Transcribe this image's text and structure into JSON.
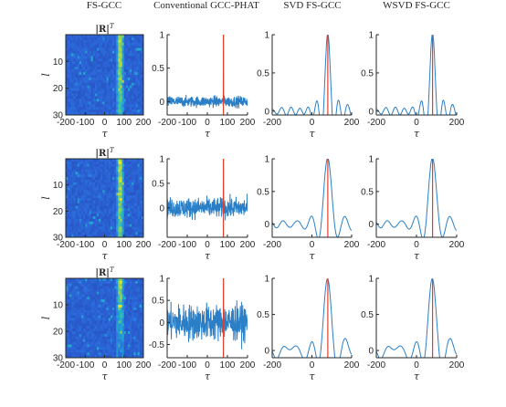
{
  "column_titles": [
    "FS-GCC",
    "Conventional GCC-PHAT",
    "SVD FS-GCC",
    "WSVD FS-GCC"
  ],
  "heatmap_title": "|R|",
  "heatmap_title_sup": "T",
  "tau_label": "τ",
  "l_label": "l",
  "colors": {
    "signal": "#2b7fc7",
    "truth": "#e0402e",
    "heat_low": "#2b3fb2",
    "heat_high": "#f5e928"
  },
  "chart_data": [
    {
      "row": 1,
      "column": "FS-GCC",
      "type": "heatmap",
      "xlim": [
        -200,
        200
      ],
      "ylim": [
        0,
        30
      ],
      "y_reversed": true,
      "xticks": [
        "-200",
        "-100",
        "0",
        "100",
        "200"
      ],
      "yticks": [
        "10",
        "20",
        "30"
      ],
      "xlabel": "τ",
      "ylabel": "l",
      "peak_tau": 80
    },
    {
      "row": 1,
      "column": "Conventional GCC-PHAT",
      "type": "line",
      "xlim": [
        -200,
        200
      ],
      "ylim": [
        -0.2,
        1
      ],
      "xticks": [
        "-200",
        "-100",
        "0",
        "100",
        "200"
      ],
      "yticks": [
        "0",
        "0.5",
        "1"
      ],
      "xlabel": "τ",
      "truth_tau": 80,
      "peak_value": 1,
      "noise_level": 0.08
    },
    {
      "row": 1,
      "column": "SVD FS-GCC",
      "type": "line",
      "xlim": [
        -200,
        200
      ],
      "ylim": [
        -0.05,
        1
      ],
      "xticks": [
        "-200",
        "0",
        "200"
      ],
      "yticks": [
        "0",
        "0.5",
        "1"
      ],
      "xlabel": "τ",
      "truth_tau": 80,
      "peak_value": 1
    },
    {
      "row": 1,
      "column": "WSVD FS-GCC",
      "type": "line",
      "xlim": [
        -200,
        200
      ],
      "ylim": [
        -0.05,
        1
      ],
      "xticks": [
        "-200",
        "0",
        "200"
      ],
      "yticks": [
        "0",
        "0.5",
        "1"
      ],
      "xlabel": "τ",
      "truth_tau": 80,
      "peak_value": 1
    },
    {
      "row": 2,
      "column": "FS-GCC",
      "type": "heatmap",
      "xlim": [
        -200,
        200
      ],
      "ylim": [
        0,
        30
      ],
      "y_reversed": true,
      "xticks": [
        "-200",
        "-100",
        "0",
        "100",
        "200"
      ],
      "yticks": [
        "10",
        "20",
        "30"
      ],
      "xlabel": "τ",
      "ylabel": "l",
      "peak_tau": 80
    },
    {
      "row": 2,
      "column": "Conventional GCC-PHAT",
      "type": "line",
      "xlim": [
        -200,
        200
      ],
      "ylim": [
        -0.6,
        1
      ],
      "xticks": [
        "-200",
        "-100",
        "0",
        "100",
        "200"
      ],
      "yticks": [
        "0",
        "0.5",
        "1"
      ],
      "xlabel": "τ",
      "truth_tau": 80,
      "peak_value": 1,
      "noise_level": 0.2
    },
    {
      "row": 2,
      "column": "SVD FS-GCC",
      "type": "line",
      "xlim": [
        -200,
        200
      ],
      "ylim": [
        -0.2,
        1
      ],
      "xticks": [
        "-200",
        "0",
        "200"
      ],
      "yticks": [
        "0",
        "0.5",
        "1"
      ],
      "xlabel": "τ",
      "truth_tau": 80,
      "peak_value": 1
    },
    {
      "row": 2,
      "column": "WSVD FS-GCC",
      "type": "line",
      "xlim": [
        -200,
        200
      ],
      "ylim": [
        -0.2,
        1
      ],
      "xticks": [
        "-200",
        "0",
        "200"
      ],
      "yticks": [
        "0",
        "0.5",
        "1"
      ],
      "xlabel": "τ",
      "truth_tau": 80,
      "peak_value": 1
    },
    {
      "row": 3,
      "column": "FS-GCC",
      "type": "heatmap",
      "xlim": [
        -200,
        200
      ],
      "ylim": [
        0,
        30
      ],
      "y_reversed": true,
      "xticks": [
        "-200",
        "-100",
        "0",
        "100",
        "200"
      ],
      "yticks": [
        "10",
        "20",
        "30"
      ],
      "xlabel": "τ",
      "ylabel": "l",
      "peak_tau": 80
    },
    {
      "row": 3,
      "column": "Conventional GCC-PHAT",
      "type": "line",
      "xlim": [
        -200,
        200
      ],
      "ylim": [
        -0.8,
        1
      ],
      "xticks": [
        "-200",
        "-100",
        "0",
        "100",
        "200"
      ],
      "yticks": [
        "-0.5",
        "0",
        "0.5",
        "1"
      ],
      "xlabel": "τ",
      "truth_tau": 80,
      "peak_value": 1,
      "noise_level": 0.4
    },
    {
      "row": 3,
      "column": "SVD FS-GCC",
      "type": "line",
      "xlim": [
        -200,
        200
      ],
      "ylim": [
        -0.1,
        1
      ],
      "xticks": [
        "-200",
        "0",
        "200"
      ],
      "yticks": [
        "0",
        "0.5",
        "1"
      ],
      "xlabel": "τ",
      "truth_tau": 80,
      "peak_value": 1
    },
    {
      "row": 3,
      "column": "WSVD FS-GCC",
      "type": "line",
      "xlim": [
        -200,
        200
      ],
      "ylim": [
        -0.1,
        1
      ],
      "xticks": [
        "-200",
        "0",
        "200"
      ],
      "yticks": [
        "0",
        "0.5",
        "1"
      ],
      "xlabel": "τ",
      "truth_tau": 80,
      "peak_value": 1
    }
  ]
}
